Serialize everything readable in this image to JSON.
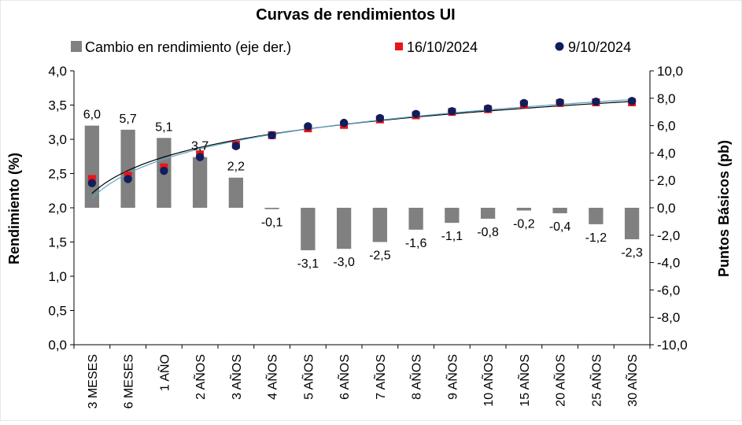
{
  "chart_data": {
    "type": "bar",
    "title": "Curvas de rendimientos UI",
    "categories": [
      "3 MESES",
      "6 MESES",
      "1 AÑO",
      "2 AÑOS",
      "3 AÑOS",
      "4 AÑOS",
      "5 AÑOS",
      "6 AÑOS",
      "7 AÑOS",
      "8 AÑOS",
      "9 AÑOS",
      "10 AÑOS",
      "15 AÑOS",
      "20 AÑOS",
      "25 AÑOS",
      "30 AÑOS"
    ],
    "ylabel": "Rendimiento (%)",
    "y2label": "Puntos Básicos (pb)",
    "ylim": [
      0,
      4.0
    ],
    "y2lim": [
      -10.0,
      10.0
    ],
    "yticks": [
      "0,0",
      "0,5",
      "1,0",
      "1,5",
      "2,0",
      "2,5",
      "3,0",
      "3,5",
      "4,0"
    ],
    "y2ticks": [
      "-10,0",
      "-8,0",
      "-6,0",
      "-4,0",
      "-2,0",
      "0,0",
      "2,0",
      "4,0",
      "6,0",
      "8,0",
      "10,0"
    ],
    "series": [
      {
        "name": "Cambio en rendimiento (eje der.)",
        "kind": "bar",
        "axis": "right",
        "color": "#808080",
        "values": [
          6.0,
          5.7,
          5.1,
          3.7,
          2.2,
          -0.1,
          -3.1,
          -3.0,
          -2.5,
          -1.6,
          -1.1,
          -0.8,
          -0.2,
          -0.4,
          -1.2,
          -2.3
        ],
        "labels": [
          "6,0",
          "5,7",
          "5,1",
          "3,7",
          "2,2",
          "-0,1",
          "-3,1",
          "-3,0",
          "-2,5",
          "-1,6",
          "-1,1",
          "-0,8",
          "-0,2",
          "-0,4",
          "-1,2",
          "-2,3"
        ]
      },
      {
        "name": "16/10/2024",
        "kind": "scatter",
        "marker": "square",
        "axis": "left",
        "color": "#e8151b",
        "values": [
          2.42,
          2.47,
          2.59,
          2.78,
          2.92,
          3.06,
          3.16,
          3.21,
          3.29,
          3.35,
          3.4,
          3.44,
          3.51,
          3.53,
          3.54,
          3.54
        ]
      },
      {
        "name": "9/10/2024",
        "kind": "scatter",
        "marker": "circle",
        "axis": "left",
        "color": "#0d1f5c",
        "values": [
          2.36,
          2.42,
          2.54,
          2.74,
          2.9,
          3.06,
          3.19,
          3.24,
          3.31,
          3.37,
          3.41,
          3.45,
          3.53,
          3.54,
          3.55,
          3.56
        ]
      }
    ],
    "trendlines": [
      {
        "series": "16/10/2024",
        "color": "#000000"
      },
      {
        "series": "9/10/2024",
        "color": "#5aa7c7"
      }
    ],
    "legend": "top",
    "grid": false
  }
}
